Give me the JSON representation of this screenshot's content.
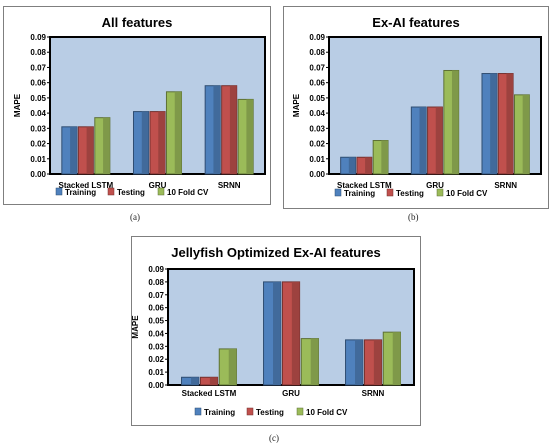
{
  "chart_data": [
    {
      "type": "bar",
      "title": "All features",
      "ylabel": "MAPE",
      "xlabel": "",
      "ylim": [
        0,
        0.09
      ],
      "yticks": [
        "0.00",
        "0.01",
        "0.02",
        "0.03",
        "0.04",
        "0.05",
        "0.06",
        "0.07",
        "0.08",
        "0.09"
      ],
      "categories": [
        "Stacked LSTM",
        "GRU",
        "SRNN"
      ],
      "series": [
        {
          "name": "Training",
          "color": "#4f81bd",
          "values": [
            0.031,
            0.041,
            0.058
          ]
        },
        {
          "name": "Testing",
          "color": "#c0504d",
          "values": [
            0.031,
            0.041,
            0.058
          ]
        },
        {
          "name": "10 Fold CV",
          "color": "#9bbb59",
          "values": [
            0.037,
            0.054,
            0.049
          ]
        }
      ],
      "grid": false,
      "legend": "bottom",
      "plot_bg": "#b9cde5",
      "caption": "(a)"
    },
    {
      "type": "bar",
      "title": "Ex-AI features",
      "ylabel": "MAPE",
      "xlabel": "",
      "ylim": [
        0,
        0.09
      ],
      "yticks": [
        "0.00",
        "0.01",
        "0.02",
        "0.03",
        "0.04",
        "0.05",
        "0.06",
        "0.07",
        "0.08",
        "0.09"
      ],
      "categories": [
        "Stacked LSTM",
        "GRU",
        "SRNN"
      ],
      "series": [
        {
          "name": "Training",
          "color": "#4f81bd",
          "values": [
            0.011,
            0.044,
            0.066
          ]
        },
        {
          "name": "Testing",
          "color": "#c0504d",
          "values": [
            0.011,
            0.044,
            0.066
          ]
        },
        {
          "name": "10 Fold CV",
          "color": "#9bbb59",
          "values": [
            0.022,
            0.068,
            0.052
          ]
        }
      ],
      "grid": false,
      "legend": "bottom",
      "plot_bg": "#b9cde5",
      "caption": "(b)"
    },
    {
      "type": "bar",
      "title": "Jellyfish Optimized Ex-AI features",
      "ylabel": "MAPE",
      "xlabel": "",
      "ylim": [
        0,
        0.09
      ],
      "yticks": [
        "0.00",
        "0.01",
        "0.02",
        "0.03",
        "0.04",
        "0.05",
        "0.06",
        "0.07",
        "0.08",
        "0.09"
      ],
      "categories": [
        "Stacked LSTM",
        "GRU",
        "SRNN"
      ],
      "series": [
        {
          "name": "Training",
          "color": "#4f81bd",
          "values": [
            0.006,
            0.08,
            0.035
          ]
        },
        {
          "name": "Testing",
          "color": "#c0504d",
          "values": [
            0.006,
            0.08,
            0.035
          ]
        },
        {
          "name": "10 Fold CV",
          "color": "#9bbb59",
          "values": [
            0.028,
            0.036,
            0.041
          ]
        }
      ],
      "grid": false,
      "legend": "bottom",
      "plot_bg": "#b9cde5",
      "caption": "(c)"
    }
  ]
}
